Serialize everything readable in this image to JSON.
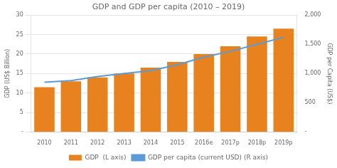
{
  "chart_data": {
    "type": "bar",
    "title": "GDP and GDP per capita (2010 – 2019)",
    "categories": [
      "2010",
      "2011",
      "2012",
      "2013",
      "2014",
      "2015",
      "2016e",
      "2017p",
      "2018p",
      "2019p"
    ],
    "series": [
      {
        "name": "GDP  (L axis)",
        "type": "bar",
        "color": "#E8821E",
        "values": [
          11.5,
          13.0,
          14.0,
          15.0,
          16.5,
          18.0,
          20.0,
          22.0,
          24.5,
          26.5
        ]
      },
      {
        "name": "GDP per capita (current USD) (R axis)",
        "type": "line",
        "axis": "y2",
        "color": "#5B9BD5",
        "values": [
          850,
          880,
          950,
          1000,
          1050,
          1150,
          1280,
          1380,
          1500,
          1620
        ]
      }
    ],
    "ylabel": "GDP (US$ Billion)",
    "y2label": "GDP per Capita (US$)",
    "ylim": [
      0,
      30
    ],
    "yticks": [
      {
        "value": 0,
        "label": "-"
      },
      5,
      10,
      15,
      20,
      25,
      30
    ],
    "y2lim": [
      0,
      2000
    ],
    "y2ticks": [
      {
        "value": 0,
        "label": "-"
      },
      500,
      {
        "value": 1000,
        "label": "1,000"
      },
      {
        "value": 1500,
        "label": "1,500"
      },
      {
        "value": 2000,
        "label": "2,000"
      }
    ],
    "grid": true,
    "legend": "bottom"
  }
}
